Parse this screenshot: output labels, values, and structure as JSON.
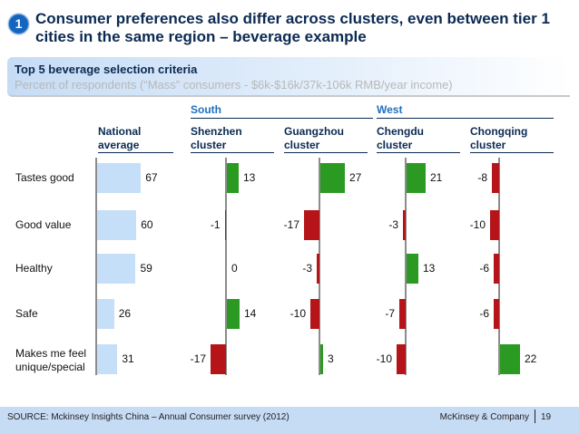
{
  "header": {
    "badge": "1",
    "title": "Consumer preferences also differ across clusters, even between tier 1 cities in the same region – beverage example",
    "subtitle": "Top 5 beverage selection criteria",
    "note": "Percent of respondents (“Mass” consumers - $6k-$16k/37k-106k RMB/year income)"
  },
  "chart_data": {
    "type": "bar",
    "orientation": "horizontal",
    "title": "Top 5 beverage selection criteria",
    "ylabel": "Percent of respondents (“Mass” consumers - $6k-$16k/37k-106k RMB/year income)",
    "categories": [
      "Tastes good",
      "Good value",
      "Healthy",
      "Safe",
      "Makes me feel unique/special"
    ],
    "regions": [
      {
        "name": "South",
        "clusters": [
          "Shenzhen cluster",
          "Guangzhou cluster"
        ]
      },
      {
        "name": "West",
        "clusters": [
          "Chengdu cluster",
          "Chongqing cluster"
        ]
      }
    ],
    "series": [
      {
        "name": "National average",
        "header": [
          "National",
          "average"
        ],
        "kind": "absolute",
        "values": [
          67,
          60,
          59,
          26,
          31
        ]
      },
      {
        "name": "Shenzhen cluster",
        "header": [
          "Shenzhen",
          "cluster"
        ],
        "kind": "delta",
        "values": [
          13,
          -1,
          0,
          14,
          -17
        ]
      },
      {
        "name": "Guangzhou cluster",
        "header": [
          "Guangzhou",
          "cluster"
        ],
        "kind": "delta",
        "values": [
          27,
          -17,
          -3,
          -10,
          3
        ]
      },
      {
        "name": "Chengdu cluster",
        "header": [
          "Chengdu",
          "cluster"
        ],
        "kind": "delta",
        "values": [
          21,
          -3,
          13,
          -7,
          -10
        ]
      },
      {
        "name": "Chongqing cluster",
        "header": [
          "Chongqing",
          "cluster"
        ],
        "kind": "delta",
        "values": [
          -8,
          -10,
          -6,
          -6,
          22
        ]
      }
    ],
    "colors": {
      "absolute": "#c6dff8",
      "positive": "#2a9a22",
      "negative": "#b51418",
      "axis": "#8c8c8c"
    }
  },
  "footer": {
    "source": "SOURCE: Mckinsey Insights China – Annual Consumer survey (2012)",
    "brand": "McKinsey & Company",
    "page": "19"
  }
}
